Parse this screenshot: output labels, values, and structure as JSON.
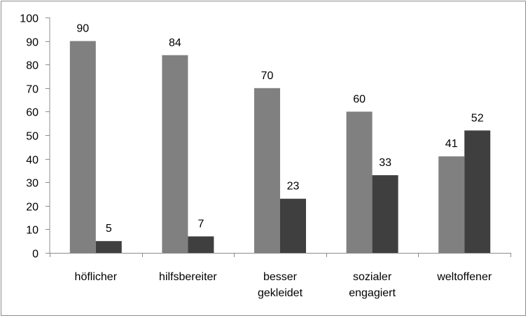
{
  "chart_data": {
    "type": "bar",
    "title": "",
    "xlabel": "",
    "ylabel": "",
    "ylim": [
      0,
      100
    ],
    "yticks": [
      0,
      10,
      20,
      30,
      40,
      50,
      60,
      70,
      80,
      90,
      100
    ],
    "grid": false,
    "legend": "none",
    "categories": [
      [
        "höflicher"
      ],
      [
        "hilfsbereiter"
      ],
      [
        "besser",
        "gekleidet"
      ],
      [
        "sozialer",
        "engagiert"
      ],
      [
        "weltoffener"
      ]
    ],
    "series": [
      {
        "values": [
          90,
          84,
          70,
          60,
          41
        ],
        "color": "#808080"
      },
      {
        "values": [
          5,
          7,
          23,
          33,
          52
        ],
        "color": "#3f3f3f"
      }
    ]
  }
}
